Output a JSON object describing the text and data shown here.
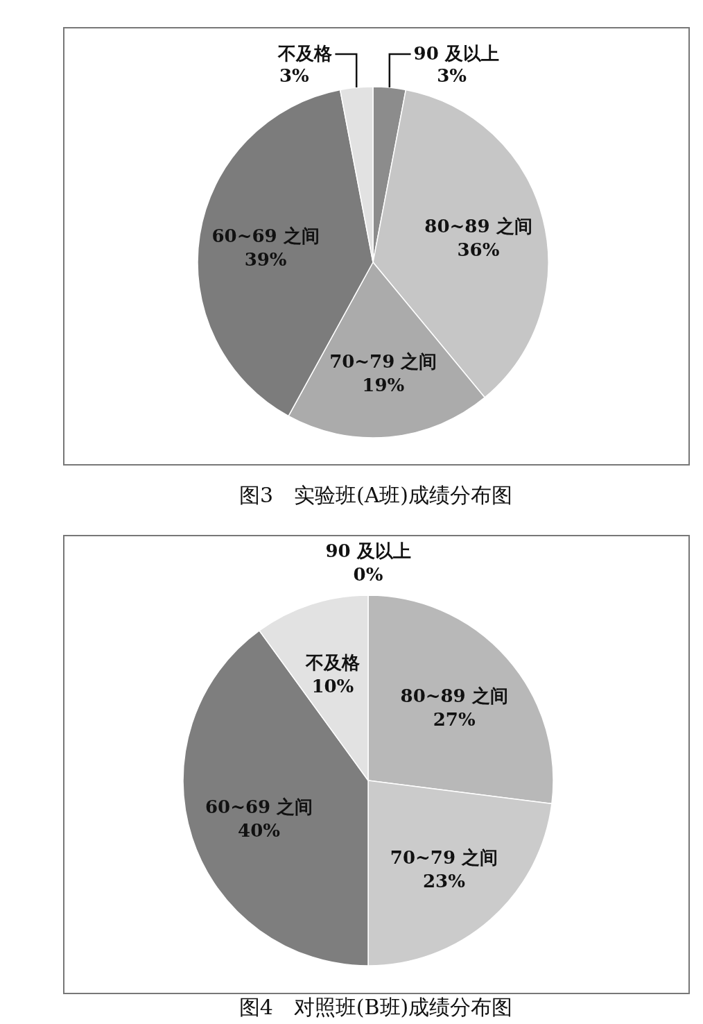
{
  "chart_data": [
    {
      "type": "pie",
      "title": "图3　实验班(A班)成绩分布图",
      "categories": [
        "90 及以上",
        "80~89 之间",
        "70~79 之间",
        "60~69 之间",
        "不及格"
      ],
      "values": [
        3,
        36,
        19,
        39,
        3
      ],
      "value_labels": [
        "3%",
        "36%",
        "19%",
        "39%",
        "3%"
      ],
      "colors": [
        "#8c8c8c",
        "#c6c6c6",
        "#ababab",
        "#7c7c7c",
        "#e2e2e2"
      ]
    },
    {
      "type": "pie",
      "title": "图4　对照班(B班)成绩分布图",
      "categories": [
        "90 及以上",
        "80~89 之间",
        "70~79 之间",
        "60~69 之间",
        "不及格"
      ],
      "values": [
        0,
        27,
        23,
        40,
        10
      ],
      "value_labels": [
        "0%",
        "27%",
        "23%",
        "40%",
        "10%"
      ],
      "colors": [
        "#9a9a9a",
        "#b8b8b8",
        "#cbcbcb",
        "#7e7e7e",
        "#e2e2e2"
      ]
    }
  ]
}
